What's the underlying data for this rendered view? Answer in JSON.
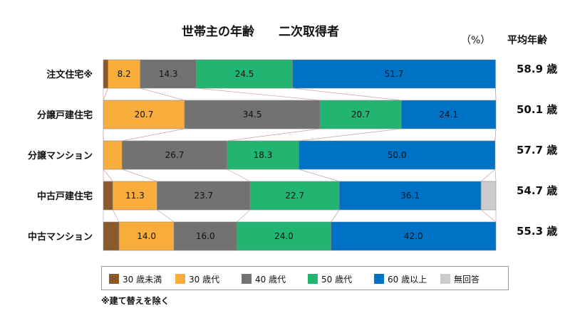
{
  "title_left": "世帯主の年齢",
  "title_right": "二次取得者",
  "unit": "（%）",
  "avg_header": "平均年齢",
  "footnote": "※建て替えを除く",
  "chart_data": {
    "type": "bar",
    "orientation": "horizontal",
    "stacked": true,
    "title": "世帯主の年齢　二次取得者",
    "xlim": [
      0,
      100
    ],
    "legend_position": "bottom",
    "categories": [
      "注文住宅※",
      "分譲戸建住宅",
      "分譲マンション",
      "中古戸建住宅",
      "中古マンション"
    ],
    "series": [
      {
        "name": "30 歳未満",
        "color": "#8b5a2b",
        "values": [
          1.2,
          0.0,
          0.0,
          2.4,
          4.0
        ]
      },
      {
        "name": "30 歳代",
        "color": "#f8ad3c",
        "values": [
          8.2,
          20.7,
          4.8,
          11.3,
          14.0
        ]
      },
      {
        "name": "40 歳代",
        "color": "#727272",
        "values": [
          14.3,
          34.5,
          26.7,
          23.7,
          16.0
        ]
      },
      {
        "name": "50 歳代",
        "color": "#21b571",
        "values": [
          24.5,
          20.7,
          18.3,
          22.7,
          24.0
        ]
      },
      {
        "name": "60 歳以上",
        "color": "#0072c6",
        "values": [
          51.7,
          24.1,
          50.0,
          36.1,
          42.0
        ]
      },
      {
        "name": "無回答",
        "color": "#cccccc",
        "values": [
          0.0,
          0.0,
          0.0,
          3.8,
          0.0
        ]
      }
    ],
    "data_labels": [
      [
        "",
        "8.2",
        "14.3",
        "24.5",
        "51.7",
        ""
      ],
      [
        "",
        "20.7",
        "34.5",
        "20.7",
        "24.1",
        ""
      ],
      [
        "",
        "",
        "26.7",
        "18.3",
        "50.0",
        ""
      ],
      [
        "",
        "11.3",
        "23.7",
        "22.7",
        "36.1",
        ""
      ],
      [
        "",
        "14.0",
        "16.0",
        "24.0",
        "42.0",
        ""
      ]
    ],
    "average_age_labels": [
      "58.9 歳",
      "50.1 歳",
      "57.7 歳",
      "54.7 歳",
      "55.3 歳"
    ],
    "connector_lines": true
  }
}
